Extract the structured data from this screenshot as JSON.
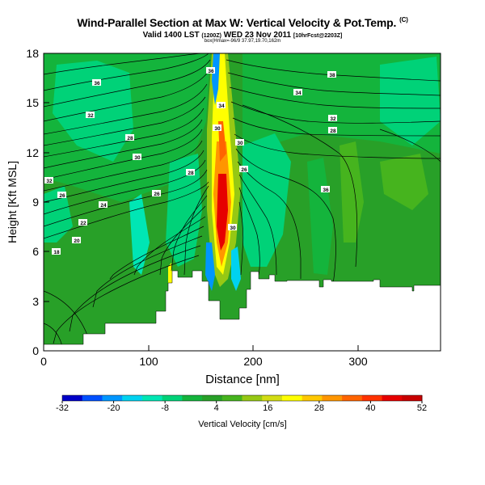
{
  "header": {
    "title": "Wind-Parallel Section at Max W: Vertical Velocity & Pot.Temp.",
    "copyright": "(C)",
    "valid_main": "Valid 1400 LST",
    "valid_small1": "(1200Z)",
    "valid_day": "WED 23 Nov 2011",
    "valid_small2": "[10hrFcst@2203Z]",
    "box_line": "box(Hmax=-96/9 37.97,19.70,162m"
  },
  "chart_data": {
    "type": "heatmap",
    "xlabel": "Distance [nm]",
    "ylabel": "Height [Kft MSL]",
    "xlim": [
      0,
      378
    ],
    "ylim": [
      0,
      18
    ],
    "x_ticks": [
      0,
      100,
      200,
      300
    ],
    "y_ticks": [
      0,
      3,
      6,
      9,
      12,
      15,
      18
    ],
    "colorbar": {
      "label": "Vertical Velocity [cm/s]",
      "ticks": [
        "-32",
        "-20",
        "-8",
        "4",
        "16",
        "28",
        "40",
        "52"
      ],
      "colors": [
        "#0000c8",
        "#0050ff",
        "#0096ff",
        "#00d2f0",
        "#00e6b4",
        "#00d278",
        "#14b43c",
        "#28a028",
        "#46b41e",
        "#96c814",
        "#d2dc14",
        "#ffff00",
        "#ffc800",
        "#ff9600",
        "#ff6400",
        "#ff3200",
        "#e60000",
        "#c80000"
      ]
    },
    "contour_labels": [
      "36",
      "38",
      "36",
      "34",
      "34",
      "32",
      "32",
      "30",
      "28",
      "28",
      "30",
      "30",
      "28",
      "26",
      "26",
      "24",
      "22",
      "20",
      "18",
      "26",
      "32",
      "34",
      "36",
      "36",
      "30"
    ]
  }
}
